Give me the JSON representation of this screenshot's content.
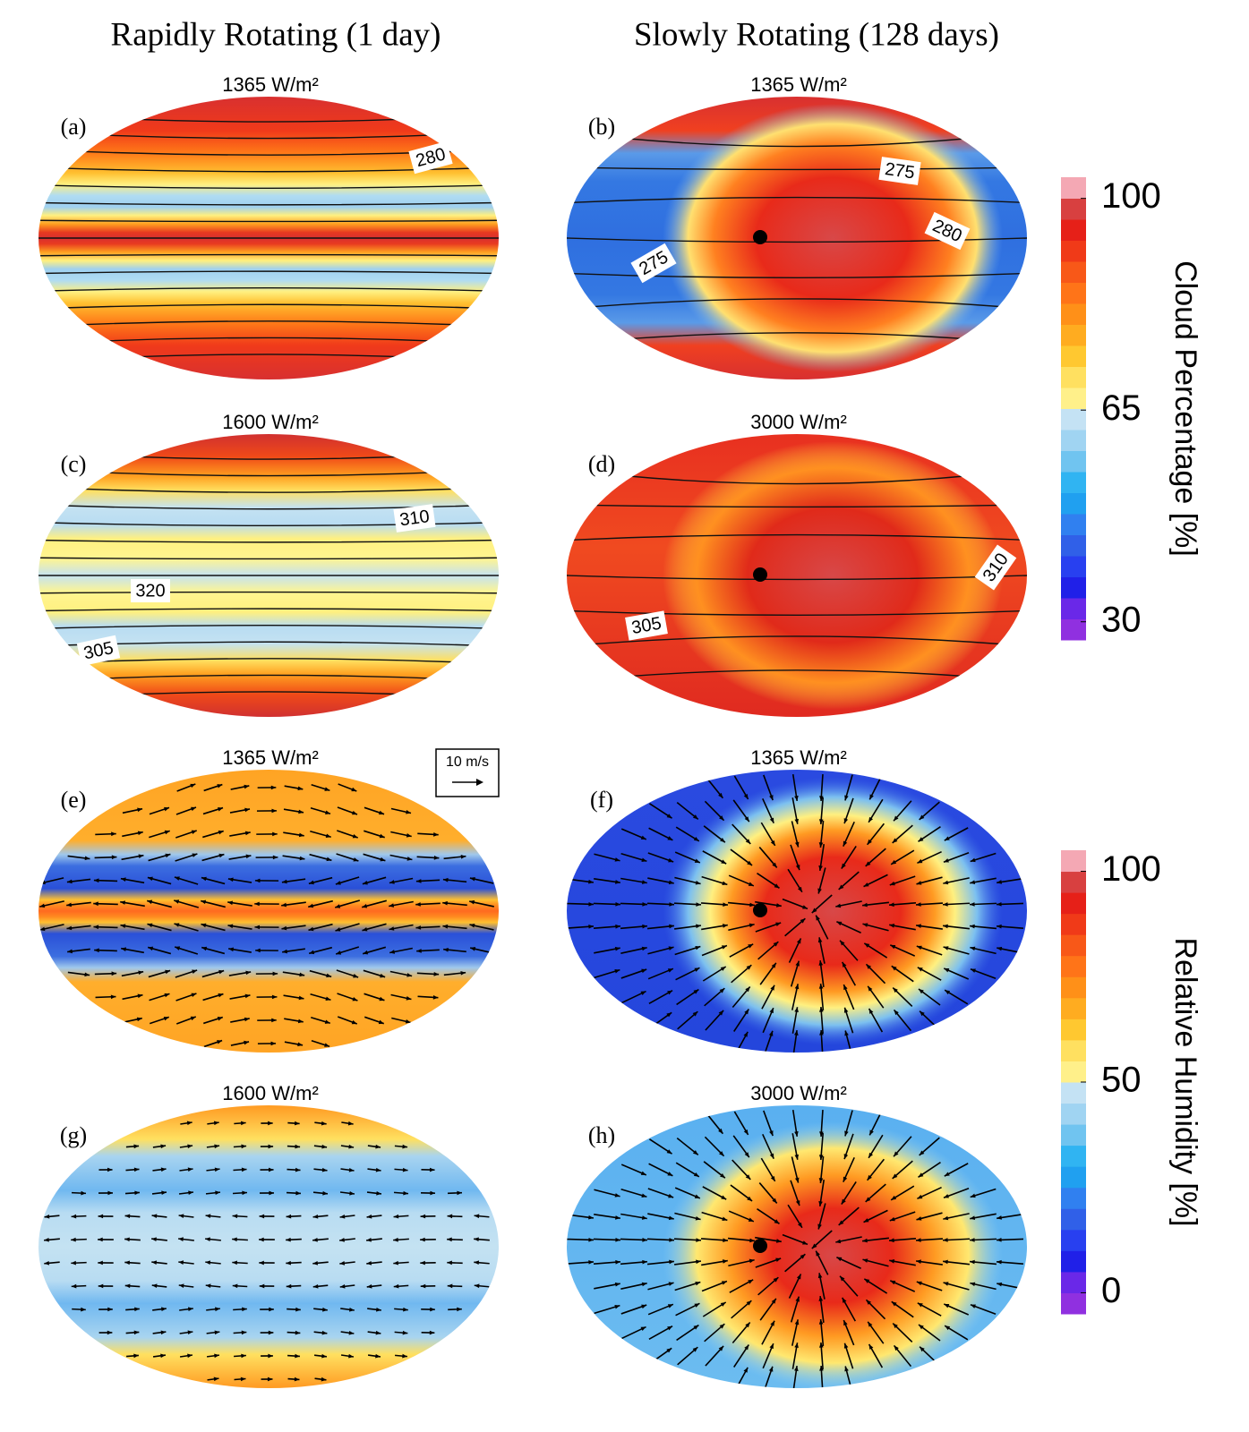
{
  "column_titles": [
    "Rapidly Rotating (1 day)",
    "Slowly Rotating (128 days)"
  ],
  "panels": [
    {
      "label": "(a)",
      "flux": "1365 W/m²",
      "contour_labels": [
        "280"
      ]
    },
    {
      "label": "(b)",
      "flux": "1365 W/m²",
      "contour_labels": [
        "275",
        "280",
        "275"
      ]
    },
    {
      "label": "(c)",
      "flux": "1600 W/m²",
      "contour_labels": [
        "310",
        "320",
        "305"
      ]
    },
    {
      "label": "(d)",
      "flux": "3000 W/m²",
      "contour_labels": [
        "305",
        "310"
      ]
    },
    {
      "label": "(e)",
      "flux": "1365 W/m²",
      "contour_labels": []
    },
    {
      "label": "(f)",
      "flux": "1365 W/m²",
      "contour_labels": []
    },
    {
      "label": "(g)",
      "flux": "1600 W/m²",
      "contour_labels": []
    },
    {
      "label": "(h)",
      "flux": "3000 W/m²",
      "contour_labels": []
    }
  ],
  "scale_arrow": {
    "label": "10 m/s"
  },
  "colorbars": [
    {
      "title": "Cloud Percentage [%]",
      "lim": [
        27,
        103.5
      ],
      "ticks": [
        30,
        65,
        100
      ]
    },
    {
      "title": "Relative Humidity [%]",
      "lim": [
        -5,
        105
      ],
      "ticks": [
        0,
        50,
        100
      ]
    }
  ]
}
